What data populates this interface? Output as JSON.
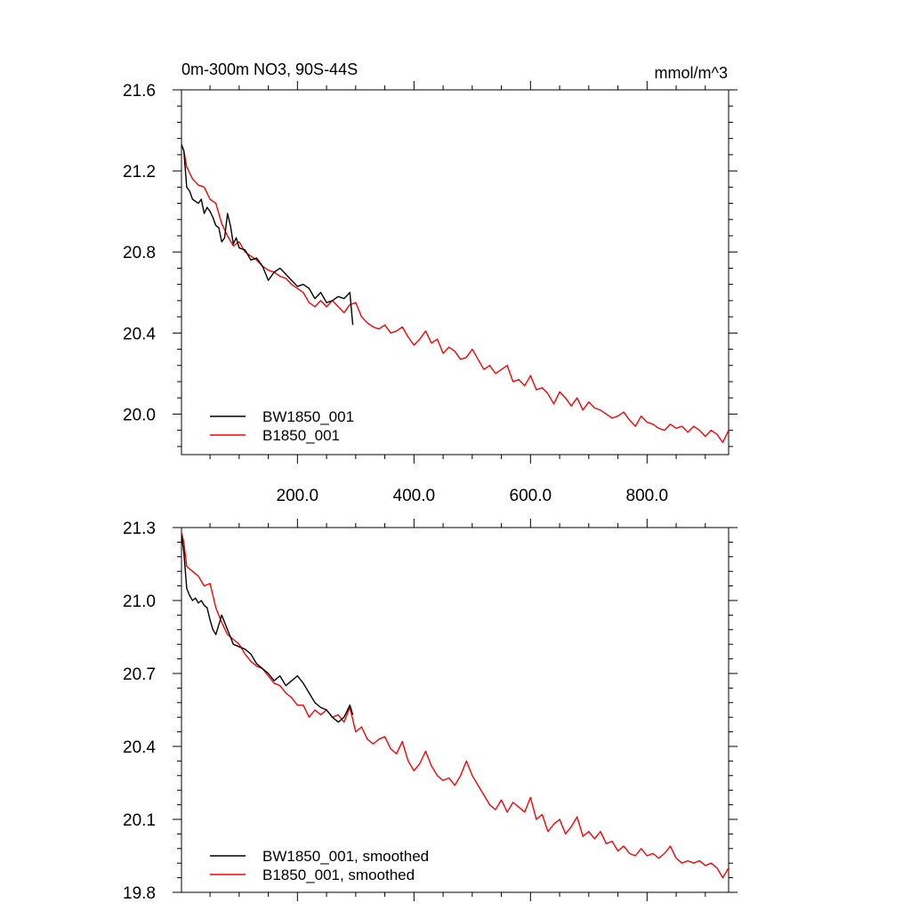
{
  "figure": {
    "title_left": "0m-300m NO3, 90S-44S",
    "units": "mmol/m^3"
  },
  "chart_data": [
    {
      "type": "line",
      "panel": "top",
      "title": "0m-300m NO3, 90S-44S",
      "units": "mmol/m^3",
      "xlim": [
        1,
        940
      ],
      "ylim": [
        19.8,
        21.6
      ],
      "xticks": [
        200,
        400,
        600,
        800
      ],
      "xtick_labels": [
        "200.0",
        "400.0",
        "600.0",
        "800.0"
      ],
      "yticks": [
        20.0,
        20.4,
        20.8,
        21.2,
        21.6
      ],
      "ytick_labels": [
        "20.0",
        "20.4",
        "20.8",
        "21.2",
        "21.6"
      ],
      "legend_position": "bottom-left",
      "series": [
        {
          "name": "BW1850_001",
          "color": "#000000",
          "x": [
            1,
            5,
            10,
            15,
            20,
            25,
            30,
            35,
            40,
            45,
            50,
            55,
            60,
            65,
            70,
            75,
            80,
            85,
            90,
            95,
            100,
            110,
            120,
            130,
            140,
            150,
            160,
            170,
            180,
            190,
            200,
            210,
            220,
            230,
            240,
            250,
            260,
            270,
            280,
            290,
            295
          ],
          "y": [
            21.33,
            21.3,
            21.12,
            21.1,
            21.06,
            21.05,
            21.04,
            21.06,
            20.99,
            21.02,
            21.0,
            20.97,
            20.93,
            20.92,
            20.85,
            20.87,
            20.99,
            20.93,
            20.84,
            20.87,
            20.82,
            20.81,
            20.76,
            20.77,
            20.73,
            20.66,
            20.7,
            20.72,
            20.69,
            20.66,
            20.63,
            20.64,
            20.62,
            20.57,
            20.6,
            20.55,
            20.56,
            20.58,
            20.57,
            20.6,
            20.44
          ]
        },
        {
          "name": "B1850_001",
          "color": "#ff0000",
          "x": [
            1,
            5,
            10,
            20,
            30,
            40,
            50,
            60,
            70,
            80,
            90,
            100,
            110,
            120,
            130,
            140,
            150,
            160,
            170,
            180,
            190,
            200,
            210,
            220,
            230,
            240,
            250,
            260,
            270,
            280,
            290,
            300,
            310,
            320,
            330,
            340,
            350,
            360,
            370,
            380,
            390,
            400,
            410,
            420,
            430,
            440,
            450,
            460,
            470,
            480,
            490,
            500,
            510,
            520,
            530,
            540,
            550,
            560,
            570,
            580,
            590,
            600,
            610,
            620,
            630,
            640,
            650,
            660,
            670,
            680,
            690,
            700,
            710,
            720,
            730,
            740,
            750,
            760,
            770,
            780,
            790,
            800,
            810,
            820,
            830,
            840,
            850,
            860,
            870,
            880,
            890,
            900,
            910,
            920,
            930,
            940
          ],
          "y": [
            21.33,
            21.3,
            21.22,
            21.16,
            21.13,
            21.12,
            21.06,
            21.04,
            20.94,
            20.88,
            20.83,
            20.85,
            20.8,
            20.78,
            20.76,
            20.73,
            20.71,
            20.7,
            20.68,
            20.67,
            20.64,
            20.62,
            20.6,
            20.55,
            20.53,
            20.56,
            20.53,
            20.56,
            20.53,
            20.5,
            20.54,
            20.55,
            20.48,
            20.45,
            20.43,
            20.42,
            20.44,
            20.4,
            20.41,
            20.43,
            20.38,
            20.34,
            20.37,
            20.41,
            20.35,
            20.37,
            20.3,
            20.33,
            20.31,
            20.27,
            20.28,
            20.32,
            20.27,
            20.22,
            20.24,
            20.2,
            20.22,
            20.24,
            20.16,
            20.17,
            20.14,
            20.19,
            20.12,
            20.13,
            20.1,
            20.05,
            20.11,
            20.08,
            20.04,
            20.08,
            20.02,
            20.06,
            20.03,
            20.02,
            20.0,
            19.98,
            19.99,
            20.01,
            19.97,
            19.94,
            19.99,
            19.96,
            19.95,
            19.93,
            19.92,
            19.95,
            19.93,
            19.94,
            19.91,
            19.94,
            19.92,
            19.89,
            19.92,
            19.9,
            19.86,
            19.92
          ]
        }
      ]
    },
    {
      "type": "line",
      "panel": "bottom",
      "xlim": [
        1,
        940
      ],
      "ylim": [
        19.8,
        21.3
      ],
      "yticks": [
        19.8,
        20.1,
        20.4,
        20.7,
        21.0,
        21.3
      ],
      "ytick_labels": [
        "19.8",
        "20.1",
        "20.4",
        "20.7",
        "21.0",
        "21.3"
      ],
      "legend_position": "bottom-left",
      "series": [
        {
          "name": "BW1850_001, smoothed",
          "color": "#000000",
          "x": [
            1,
            5,
            10,
            15,
            20,
            25,
            30,
            35,
            40,
            45,
            50,
            55,
            60,
            65,
            70,
            80,
            90,
            100,
            110,
            120,
            130,
            140,
            150,
            160,
            170,
            180,
            190,
            200,
            210,
            220,
            230,
            240,
            250,
            260,
            270,
            280,
            290,
            295
          ],
          "y": [
            21.27,
            21.2,
            21.05,
            21.02,
            21.0,
            21.01,
            20.99,
            21.0,
            20.98,
            20.97,
            20.92,
            20.88,
            20.86,
            20.9,
            20.94,
            20.88,
            20.82,
            20.81,
            20.8,
            20.78,
            20.74,
            20.72,
            20.7,
            20.67,
            20.69,
            20.65,
            20.67,
            20.69,
            20.66,
            20.62,
            20.58,
            20.56,
            20.55,
            20.52,
            20.5,
            20.52,
            20.57,
            20.53
          ]
        },
        {
          "name": "B1850_001, smoothed",
          "color": "#ff0000",
          "x": [
            1,
            5,
            10,
            20,
            30,
            40,
            50,
            60,
            70,
            80,
            90,
            100,
            110,
            120,
            130,
            140,
            150,
            160,
            170,
            180,
            190,
            200,
            210,
            220,
            230,
            240,
            250,
            260,
            270,
            280,
            290,
            300,
            310,
            320,
            330,
            340,
            350,
            360,
            370,
            380,
            390,
            400,
            410,
            420,
            430,
            440,
            450,
            460,
            470,
            480,
            490,
            500,
            510,
            520,
            530,
            540,
            550,
            560,
            570,
            580,
            590,
            600,
            610,
            620,
            630,
            640,
            650,
            660,
            670,
            680,
            690,
            700,
            710,
            720,
            730,
            740,
            750,
            760,
            770,
            780,
            790,
            800,
            810,
            820,
            830,
            840,
            850,
            860,
            870,
            880,
            890,
            900,
            910,
            920,
            930,
            940
          ],
          "y": [
            21.28,
            21.24,
            21.14,
            21.12,
            21.1,
            21.06,
            21.07,
            20.97,
            20.91,
            20.86,
            20.84,
            20.82,
            20.78,
            20.75,
            20.73,
            20.72,
            20.69,
            20.66,
            20.65,
            20.62,
            20.6,
            20.57,
            20.57,
            20.52,
            20.55,
            20.53,
            20.55,
            20.52,
            20.53,
            20.5,
            20.56,
            20.46,
            20.48,
            20.43,
            20.41,
            20.43,
            20.44,
            20.39,
            20.37,
            20.42,
            20.34,
            20.3,
            20.33,
            20.38,
            20.32,
            20.28,
            20.26,
            20.27,
            20.24,
            20.28,
            20.34,
            20.28,
            20.24,
            20.2,
            20.16,
            20.14,
            20.18,
            20.13,
            20.17,
            20.15,
            20.13,
            20.19,
            20.1,
            20.12,
            20.05,
            20.08,
            20.1,
            20.04,
            20.07,
            20.11,
            20.03,
            20.05,
            20.02,
            20.05,
            20.0,
            20.01,
            19.97,
            19.99,
            19.96,
            19.95,
            19.98,
            19.95,
            19.96,
            19.94,
            19.96,
            19.99,
            19.94,
            19.92,
            19.93,
            19.92,
            19.93,
            19.91,
            19.92,
            19.9,
            19.86,
            19.9
          ]
        }
      ]
    }
  ]
}
